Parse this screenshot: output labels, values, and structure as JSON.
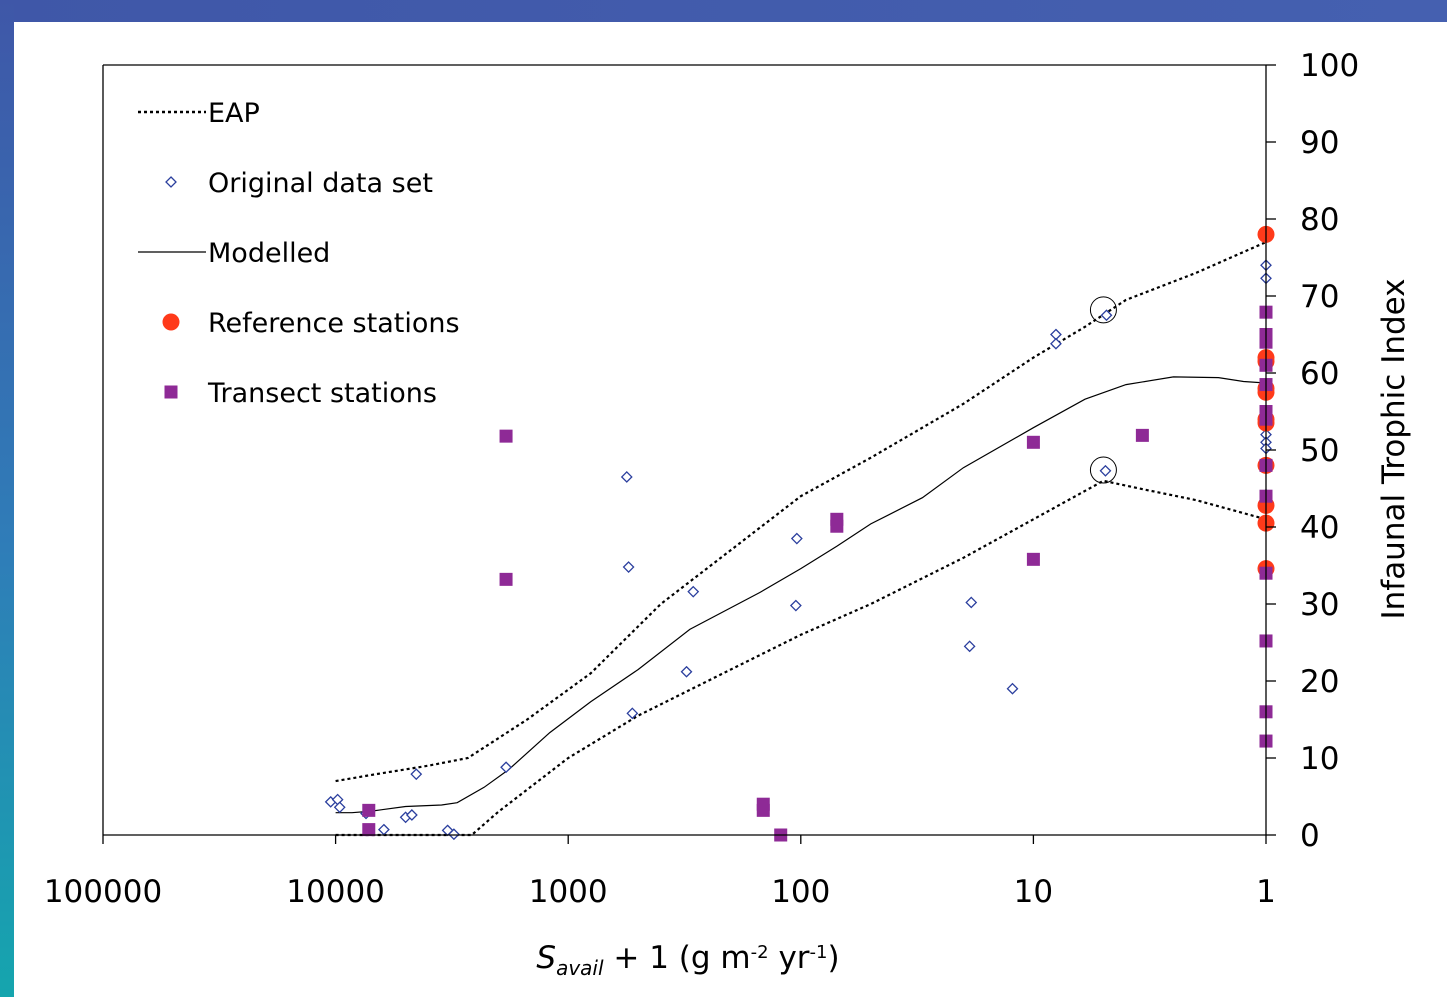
{
  "chart_data": {
    "type": "scatter",
    "xlabel": {
      "parts": [
        {
          "text": "S",
          "style": "italic"
        },
        {
          "text": "avail",
          "style": "italic-sub"
        },
        {
          "text": " + 1 (g m",
          "style": "normal"
        },
        {
          "text": "-2",
          "style": "sup"
        },
        {
          "text": " yr",
          "style": "normal"
        },
        {
          "text": "-1",
          "style": "sup"
        },
        {
          "text": ")",
          "style": "normal"
        }
      ]
    },
    "ylabel": "Infaunal Trophic Index",
    "x_scale": "log",
    "x_reversed": true,
    "xlim": [
      100000,
      1
    ],
    "ylim": [
      0,
      100
    ],
    "x_ticks": [
      {
        "value": 100000,
        "label": "100000"
      },
      {
        "value": 10000,
        "label": "10000"
      },
      {
        "value": 1000,
        "label": "1000"
      },
      {
        "value": 100,
        "label": "100"
      },
      {
        "value": 10,
        "label": "10"
      },
      {
        "value": 1,
        "label": "1"
      }
    ],
    "y_ticks": [
      {
        "value": 0,
        "label": "0"
      },
      {
        "value": 10,
        "label": "10"
      },
      {
        "value": 20,
        "label": "20"
      },
      {
        "value": 30,
        "label": "30"
      },
      {
        "value": 40,
        "label": "40"
      },
      {
        "value": 50,
        "label": "50"
      },
      {
        "value": 60,
        "label": "60"
      },
      {
        "value": 70,
        "label": "70"
      },
      {
        "value": 80,
        "label": "80"
      },
      {
        "value": 90,
        "label": "90"
      },
      {
        "value": 100,
        "label": "100"
      }
    ],
    "y_axis_side": "right",
    "grid": false,
    "legend_position": "top-left",
    "series": [
      {
        "name": "EAP",
        "kind": "dotted-line",
        "color": "#000000",
        "segments": [
          [
            [
              10000,
              7
            ],
            [
              7000,
              7.8
            ],
            [
              4000,
              9
            ],
            [
              2700,
              10
            ],
            [
              1500,
              15
            ],
            [
              800,
              21
            ],
            [
              400,
              30
            ],
            [
              200,
              37
            ],
            [
              100,
              44
            ],
            [
              50,
              49
            ],
            [
              20,
              56
            ],
            [
              10,
              62
            ],
            [
              6,
              66
            ],
            [
              4,
              69.5
            ],
            [
              2,
              73
            ],
            [
              1,
              77
            ]
          ],
          [
            [
              10000,
              0
            ],
            [
              2600,
              0
            ],
            [
              2000,
              3
            ],
            [
              1000,
              10
            ],
            [
              500,
              15.5
            ],
            [
              200,
              21.5
            ],
            [
              100,
              26
            ],
            [
              50,
              30
            ],
            [
              20,
              36
            ],
            [
              10,
              41
            ],
            [
              5,
              46
            ],
            [
              3.5,
              45
            ],
            [
              2,
              43.5
            ],
            [
              1,
              41
            ]
          ]
        ]
      },
      {
        "name": "Original data set",
        "kind": "diamond",
        "color": "#2b3f9e",
        "points": [
          [
            10500,
            4.3
          ],
          [
            9800,
            4.6
          ],
          [
            9600,
            3.6
          ],
          [
            7400,
            2.8
          ],
          [
            6200,
            0.7
          ],
          [
            5000,
            2.3
          ],
          [
            4700,
            2.6
          ],
          [
            4500,
            7.9
          ],
          [
            3300,
            0.6
          ],
          [
            3100,
            0.1
          ],
          [
            1850,
            8.8
          ],
          [
            560,
            46.5
          ],
          [
            550,
            34.8
          ],
          [
            530,
            15.8
          ],
          [
            290,
            31.6
          ],
          [
            310,
            21.2
          ],
          [
            104,
            38.5
          ],
          [
            105,
            29.8
          ],
          [
            18.5,
            30.2
          ],
          [
            18.8,
            24.5
          ],
          [
            12.3,
            19
          ],
          [
            8,
            65
          ],
          [
            8,
            63.8
          ],
          [
            4.85,
            67.5
          ],
          [
            4.9,
            47.3
          ],
          [
            1,
            74
          ],
          [
            1,
            72.3
          ],
          [
            1,
            52
          ],
          [
            1,
            51
          ],
          [
            1,
            50.2
          ],
          [
            1,
            44.2
          ]
        ]
      },
      {
        "name": "Modelled",
        "kind": "line",
        "color": "#000000",
        "points": [
          [
            10000,
            2.9
          ],
          [
            8500,
            2.9
          ],
          [
            7000,
            3.1
          ],
          [
            5000,
            3.7
          ],
          [
            3500,
            3.9
          ],
          [
            3000,
            4.2
          ],
          [
            2300,
            6.2
          ],
          [
            1800,
            8.5
          ],
          [
            1200,
            13.3
          ],
          [
            800,
            17.3
          ],
          [
            500,
            21.5
          ],
          [
            300,
            26.7
          ],
          [
            150,
            31.5
          ],
          [
            100,
            34.6
          ],
          [
            70,
            37.5
          ],
          [
            50,
            40.4
          ],
          [
            30,
            43.8
          ],
          [
            20,
            47.7
          ],
          [
            10,
            52.9
          ],
          [
            6,
            56.6
          ],
          [
            4,
            58.5
          ],
          [
            2.5,
            59.5
          ],
          [
            1.6,
            59.4
          ],
          [
            1.25,
            58.9
          ],
          [
            1,
            58.7
          ]
        ]
      },
      {
        "name": "Reference stations",
        "kind": "circle",
        "color": "#ff3a1a",
        "points": [
          [
            1,
            78
          ],
          [
            1,
            62
          ],
          [
            1,
            61.5
          ],
          [
            1,
            58
          ],
          [
            1,
            57.5
          ],
          [
            1,
            54
          ],
          [
            1,
            53.5
          ],
          [
            1,
            48
          ],
          [
            1,
            42.8
          ],
          [
            1,
            40.5
          ],
          [
            1,
            34.6
          ]
        ]
      },
      {
        "name": "Transect stations",
        "kind": "square",
        "color": "#8e2a96",
        "points": [
          [
            7200,
            3.2
          ],
          [
            7200,
            0.7
          ],
          [
            1850,
            51.8
          ],
          [
            1850,
            33.2
          ],
          [
            145,
            4
          ],
          [
            145,
            3.2
          ],
          [
            122,
            0
          ],
          [
            70,
            41
          ],
          [
            70,
            40.1
          ],
          [
            10,
            51
          ],
          [
            10,
            35.8
          ],
          [
            3.4,
            51.9
          ],
          [
            1,
            67.9
          ],
          [
            1,
            65
          ],
          [
            1,
            64
          ],
          [
            1,
            61
          ],
          [
            1,
            58.5
          ],
          [
            1,
            55
          ],
          [
            1,
            54
          ],
          [
            1,
            48
          ],
          [
            1,
            44
          ],
          [
            1,
            34
          ],
          [
            1,
            25.2
          ],
          [
            1,
            16
          ],
          [
            1,
            12.2
          ]
        ]
      },
      {
        "name": "",
        "kind": "open-circle-highlight",
        "color": "#000000",
        "points": [
          [
            5,
            68.2
          ],
          [
            5,
            47.4
          ]
        ]
      }
    ]
  }
}
